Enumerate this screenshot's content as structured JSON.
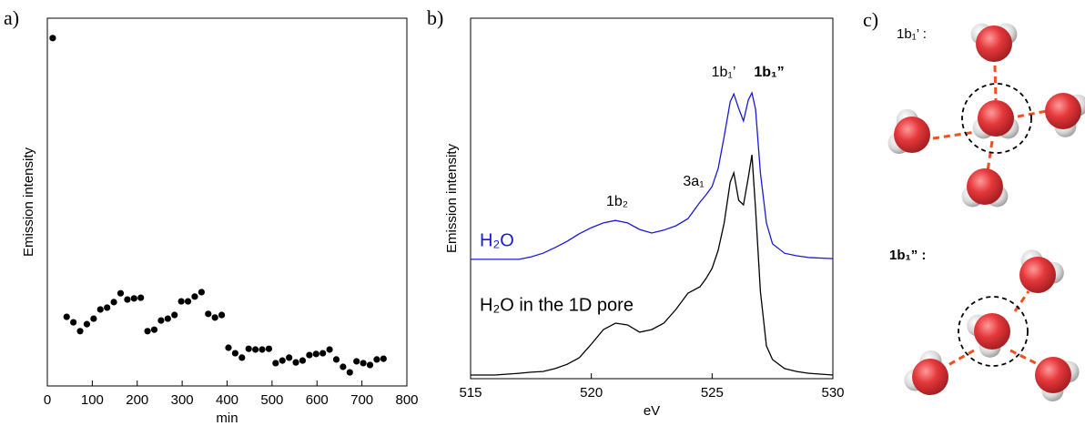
{
  "chart_data": [
    {
      "type": "scatter",
      "panel_label": "a)",
      "x_label": "min",
      "y_label": "Emission intensity",
      "xlim": [
        0,
        800
      ],
      "xticks": [
        0,
        100,
        200,
        300,
        400,
        500,
        600,
        700,
        800
      ],
      "ylim": [
        0,
        100
      ],
      "color": "#000000",
      "x": [
        12,
        43,
        58,
        73,
        88,
        103,
        118,
        133,
        148,
        163,
        178,
        193,
        208,
        223,
        238,
        253,
        268,
        283,
        298,
        313,
        328,
        343,
        358,
        373,
        388,
        403,
        418,
        433,
        448,
        463,
        478,
        493,
        508,
        523,
        538,
        553,
        568,
        583,
        598,
        613,
        628,
        643,
        658,
        673,
        688,
        703,
        718,
        733,
        748
      ],
      "values": [
        94.6,
        18.8,
        17.3,
        14.9,
        16.8,
        18.3,
        20.8,
        21.3,
        22.8,
        25.2,
        23.5,
        23.8,
        24.0,
        14.9,
        15.3,
        17.8,
        18.3,
        19.3,
        23.0,
        23.0,
        24.3,
        25.5,
        19.6,
        18.6,
        19.3,
        10.4,
        8.9,
        7.7,
        10.1,
        9.9,
        9.9,
        10.1,
        6.2,
        6.9,
        7.7,
        6.4,
        6.9,
        8.4,
        8.7,
        8.9,
        9.9,
        7.2,
        5.2,
        3.7,
        6.7,
        6.2,
        5.7,
        7.2,
        7.4
      ]
    },
    {
      "type": "line",
      "panel_label": "b)",
      "x_label": "eV",
      "y_label": "Emission intensity",
      "xlim": [
        515,
        530
      ],
      "xticks": [
        515,
        520,
        525,
        530
      ],
      "ylim": [
        0,
        100
      ],
      "annotations": [
        "1b₂",
        "3a₁",
        "1b₁’",
        "1b₁”"
      ],
      "x": [
        515,
        516,
        517,
        517.5,
        518,
        518.5,
        519,
        519.5,
        520,
        520.5,
        521,
        521.5,
        522,
        522.5,
        523,
        523.5,
        524,
        524.5,
        524.75,
        525,
        525.25,
        525.5,
        525.75,
        525.9,
        526.1,
        526.3,
        526.5,
        526.65,
        526.8,
        527,
        527.25,
        527.5,
        528,
        528.5,
        529,
        530
      ],
      "series": [
        {
          "name": "H₂O",
          "color": "#1a1ad6",
          "values": [
            33.1,
            33.1,
            33.1,
            33.8,
            34.8,
            36.4,
            38.1,
            40.2,
            41.9,
            43.2,
            43.9,
            43.2,
            41.4,
            40.4,
            41.2,
            42.4,
            44.4,
            49.0,
            51.0,
            53.3,
            58.3,
            67.2,
            76.8,
            79.0,
            75.0,
            71.5,
            77.3,
            79.3,
            74.7,
            57.1,
            43.2,
            37.4,
            34.8,
            34.1,
            33.6,
            33.3
          ]
        },
        {
          "name": "H₂O in the 1D pore",
          "color": "#000000",
          "values": [
            1.0,
            1.0,
            1.5,
            1.8,
            2.0,
            2.8,
            4.0,
            5.8,
            9.6,
            13.6,
            15.4,
            14.9,
            12.9,
            13.6,
            15.4,
            19.2,
            23.7,
            25.5,
            27.8,
            30.6,
            35.6,
            43.2,
            54.5,
            57.1,
            49.5,
            48.2,
            55.8,
            62.1,
            47.0,
            24.2,
            9.1,
            5.3,
            2.8,
            2.0,
            1.5,
            1.0
          ]
        }
      ]
    }
  ],
  "panel_c": {
    "label": "c)",
    "top_label": "1b₁’ :",
    "bottom_label": "1b₁” :"
  }
}
